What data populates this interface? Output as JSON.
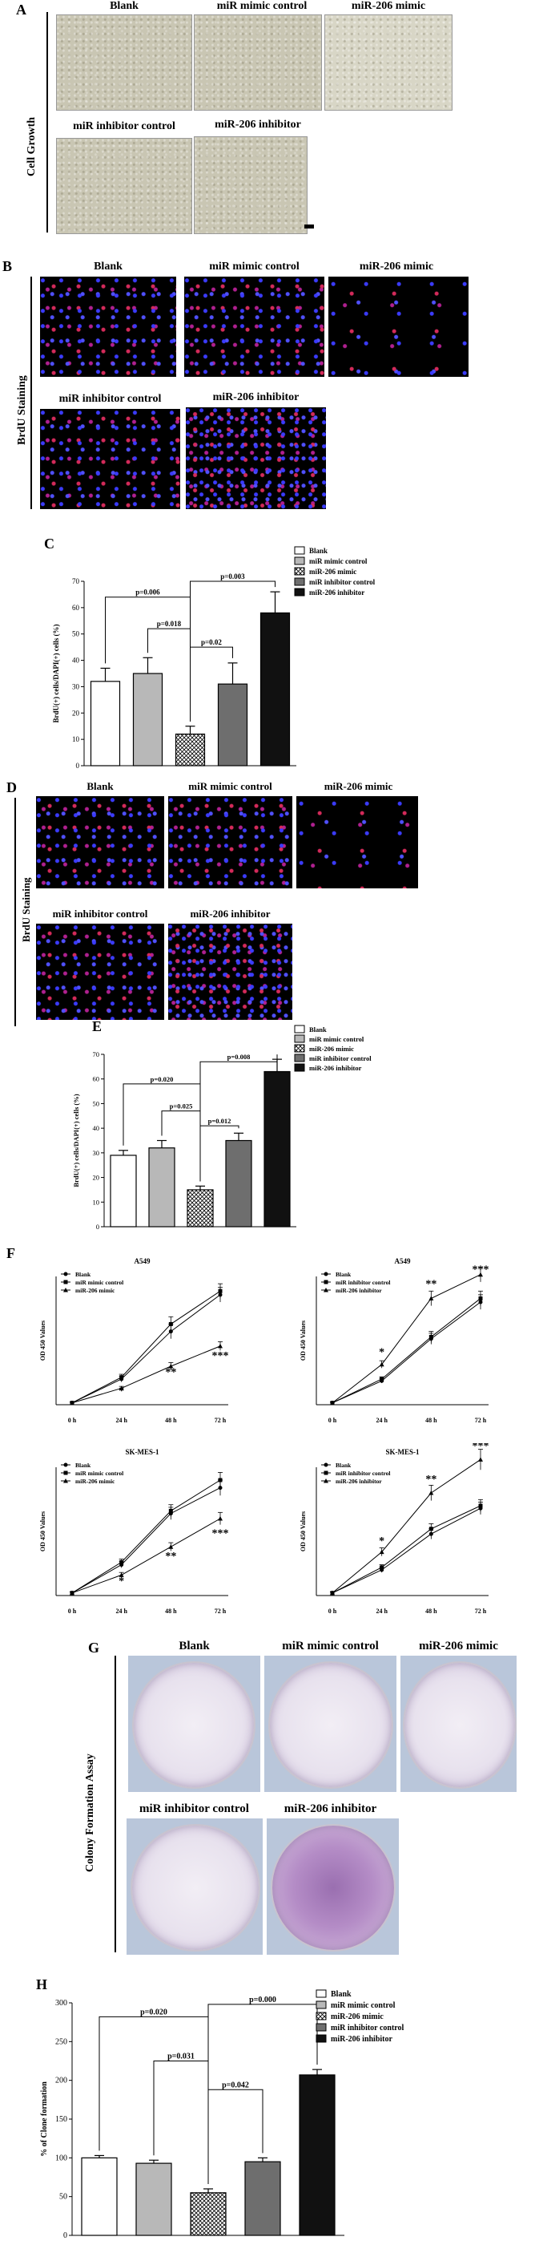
{
  "panelA": {
    "letter": "A",
    "side_label": "Cell Growth",
    "images": [
      "Blank",
      "miR mimic control",
      "miR-206 mimic",
      "miR inhibitor control",
      "miR-206 inhibitor"
    ]
  },
  "panelB": {
    "letter": "B",
    "side_label": "BrdU Staining",
    "images": [
      "Blank",
      "miR mimic control",
      "miR-206 mimic",
      "miR inhibitor control",
      "miR-206 inhibitor"
    ]
  },
  "panelD": {
    "letter": "D",
    "side_label": "BrdU Staining",
    "images": [
      "Blank",
      "miR mimic control",
      "miR-206 mimic",
      "miR inhibitor control",
      "miR-206 inhibitor"
    ]
  },
  "panelF": {
    "letter": "F"
  },
  "panelG": {
    "letter": "G",
    "side_label": "Colony Formation Assay",
    "images": [
      "Blank",
      "miR mimic control",
      "miR-206 mimic",
      "miR inhibitor control",
      "miR-206 inhibitor"
    ]
  },
  "chart_data": [
    {
      "id": "C",
      "type": "bar",
      "letter": "C",
      "ylabel": "BrdU(+) cells/DAPI(+) cells (%)",
      "ylim": [
        0,
        70
      ],
      "yticks": [
        0,
        10,
        20,
        30,
        40,
        50,
        60,
        70
      ],
      "categories": [
        "Blank",
        "miR mimic control",
        "miR-206 mimic",
        "miR inhibitor control",
        "miR-206 inhibitor"
      ],
      "values": [
        32,
        35,
        12,
        31,
        58
      ],
      "errors": [
        5,
        6,
        3,
        8,
        8
      ],
      "fills": [
        "#ffffff",
        "#b8b8b8",
        "hatch",
        "#6e6e6e",
        "#111111"
      ],
      "legend": [
        "Blank",
        "miR mimic control",
        "miR-206 mimic",
        "miR inhibitor control",
        "miR-206 inhibitor"
      ],
      "brackets": [
        {
          "from": 0,
          "to": 2,
          "label": "p=0.006",
          "level": 64
        },
        {
          "from": 1,
          "to": 2,
          "label": "p=0.018",
          "level": 52
        },
        {
          "from": 2,
          "to": 4,
          "label": "p=0.003",
          "level": 70
        },
        {
          "from": 2,
          "to": 3,
          "label": "p=0.02",
          "level": 45
        }
      ]
    },
    {
      "id": "E",
      "type": "bar",
      "letter": "E",
      "ylabel": "BrdU(+) cells/DAPI(+) cells (%)",
      "ylim": [
        0,
        70
      ],
      "yticks": [
        0,
        10,
        20,
        30,
        40,
        50,
        60,
        70
      ],
      "categories": [
        "Blank",
        "miR mimic control",
        "miR-206 mimic",
        "miR inhibitor control",
        "miR-206 inhibitor"
      ],
      "values": [
        29,
        32,
        15,
        35,
        63
      ],
      "errors": [
        2,
        3,
        1.5,
        3,
        5
      ],
      "fills": [
        "#ffffff",
        "#b8b8b8",
        "hatch",
        "#6e6e6e",
        "#111111"
      ],
      "legend": [
        "Blank",
        "miR mimic control",
        "miR-206 mimic",
        "miR inhibitor control",
        "miR-206 inhibitor"
      ],
      "brackets": [
        {
          "from": 0,
          "to": 2,
          "label": "p=0.020",
          "level": 58
        },
        {
          "from": 1,
          "to": 2,
          "label": "p=0.025",
          "level": 47
        },
        {
          "from": 2,
          "to": 4,
          "label": "p=0.008",
          "level": 67
        },
        {
          "from": 2,
          "to": 3,
          "label": "p=0.012",
          "level": 41
        }
      ]
    },
    {
      "id": "F1",
      "type": "line",
      "title": "A549",
      "ylabel": "OD 450 Values",
      "x": [
        "0 h",
        "24 h",
        "48 h",
        "72 h"
      ],
      "ylim": [
        0,
        3.5
      ],
      "series": [
        {
          "name": "Blank",
          "values": [
            0.05,
            0.7,
            2.0,
            3.0
          ],
          "errors": [
            0.02,
            0.08,
            0.2,
            0.2
          ],
          "marker": "circle"
        },
        {
          "name": "miR mimic control",
          "values": [
            0.05,
            0.75,
            2.2,
            3.1
          ],
          "errors": [
            0.02,
            0.08,
            0.2,
            0.2
          ],
          "marker": "square"
        },
        {
          "name": "miR-206 mimic",
          "values": [
            0.05,
            0.45,
            1.05,
            1.6
          ],
          "errors": [
            0.02,
            0.05,
            0.1,
            0.12
          ],
          "marker": "triangle"
        }
      ],
      "stars": [
        {
          "x": 1,
          "y": 0.28,
          "label": "*"
        },
        {
          "x": 2,
          "y": 0.8,
          "label": "**"
        },
        {
          "x": 3,
          "y": 1.25,
          "label": "***"
        }
      ]
    },
    {
      "id": "F2",
      "type": "line",
      "title": "A549",
      "ylabel": "OD 450 Values",
      "x": [
        "0 h",
        "24 h",
        "48 h",
        "72 h"
      ],
      "ylim": [
        0,
        3.5
      ],
      "series": [
        {
          "name": "Blank",
          "values": [
            0.05,
            0.65,
            1.8,
            2.8
          ],
          "errors": [
            0.02,
            0.06,
            0.15,
            0.2
          ],
          "marker": "circle"
        },
        {
          "name": "miR inhibitor control",
          "values": [
            0.05,
            0.7,
            1.85,
            2.9
          ],
          "errors": [
            0.02,
            0.06,
            0.15,
            0.2
          ],
          "marker": "square"
        },
        {
          "name": "miR-206 inhibitor",
          "values": [
            0.05,
            1.1,
            2.9,
            3.55
          ],
          "errors": [
            0.02,
            0.1,
            0.2,
            0.2
          ],
          "marker": "triangle"
        }
      ],
      "stars": [
        {
          "x": 1,
          "y": 1.35,
          "label": "*"
        },
        {
          "x": 2,
          "y": 3.2,
          "label": "**"
        },
        {
          "x": 3,
          "y": 3.6,
          "label": "***"
        }
      ]
    },
    {
      "id": "F3",
      "type": "line",
      "title": "SK-MES-1",
      "ylabel": "OD 450 Values",
      "x": [
        "0 h",
        "24 h",
        "48 h",
        "72 h"
      ],
      "ylim": [
        0,
        2.5
      ],
      "series": [
        {
          "name": "Blank",
          "values": [
            0.05,
            0.6,
            1.6,
            2.1
          ],
          "errors": [
            0.02,
            0.06,
            0.12,
            0.15
          ],
          "marker": "circle"
        },
        {
          "name": "miR mimic control",
          "values": [
            0.05,
            0.65,
            1.65,
            2.25
          ],
          "errors": [
            0.02,
            0.06,
            0.12,
            0.15
          ],
          "marker": "square"
        },
        {
          "name": "miR-206 mimic",
          "values": [
            0.05,
            0.4,
            0.95,
            1.5
          ],
          "errors": [
            0.02,
            0.05,
            0.08,
            0.12
          ],
          "marker": "triangle"
        }
      ],
      "stars": [
        {
          "x": 1,
          "y": 0.22,
          "label": "*"
        },
        {
          "x": 2,
          "y": 0.7,
          "label": "**"
        },
        {
          "x": 3,
          "y": 1.15,
          "label": "***"
        }
      ]
    },
    {
      "id": "F4",
      "type": "line",
      "title": "SK-MES-1",
      "ylabel": "OD 450 Values",
      "x": [
        "0 h",
        "24 h",
        "48 h",
        "72 h"
      ],
      "ylim": [
        0,
        2.5
      ],
      "series": [
        {
          "name": "Blank",
          "values": [
            0.05,
            0.5,
            1.2,
            1.7
          ],
          "errors": [
            0.02,
            0.05,
            0.1,
            0.12
          ],
          "marker": "circle"
        },
        {
          "name": "miR inhibitor control",
          "values": [
            0.05,
            0.55,
            1.3,
            1.75
          ],
          "errors": [
            0.02,
            0.05,
            0.1,
            0.12
          ],
          "marker": "square"
        },
        {
          "name": "miR-206 inhibitor",
          "values": [
            0.05,
            0.85,
            2.0,
            2.65
          ],
          "errors": [
            0.02,
            0.08,
            0.15,
            0.2
          ],
          "marker": "triangle"
        }
      ],
      "stars": [
        {
          "x": 1,
          "y": 1.0,
          "label": "*"
        },
        {
          "x": 2,
          "y": 2.2,
          "label": "**"
        },
        {
          "x": 3,
          "y": 2.85,
          "label": "***"
        }
      ]
    },
    {
      "id": "H",
      "type": "bar",
      "letter": "H",
      "ylabel": "% of Clone formation",
      "ylim": [
        0,
        300
      ],
      "yticks": [
        0,
        50,
        100,
        150,
        200,
        250,
        300
      ],
      "categories": [
        "Blank",
        "miR mimic control",
        "miR-206 mimic",
        "miR inhibitor control",
        "miR-206 inhibitor"
      ],
      "values": [
        100,
        93,
        55,
        95,
        207
      ],
      "errors": [
        3,
        4,
        5,
        5,
        7
      ],
      "fills": [
        "#ffffff",
        "#b8b8b8",
        "hatch",
        "#6e6e6e",
        "#111111"
      ],
      "legend": [
        "Blank",
        "miR mimic control",
        "miR-206 mimic",
        "miR inhibitor control",
        "miR-206 inhibitor"
      ],
      "brackets": [
        {
          "from": 0,
          "to": 2,
          "label": "p=0.020",
          "level": 282
        },
        {
          "from": 1,
          "to": 2,
          "label": "p=0.031",
          "level": 225
        },
        {
          "from": 2,
          "to": 4,
          "label": "p=0.000",
          "level": 298
        },
        {
          "from": 2,
          "to": 3,
          "label": "p=0.042",
          "level": 188
        }
      ]
    }
  ]
}
